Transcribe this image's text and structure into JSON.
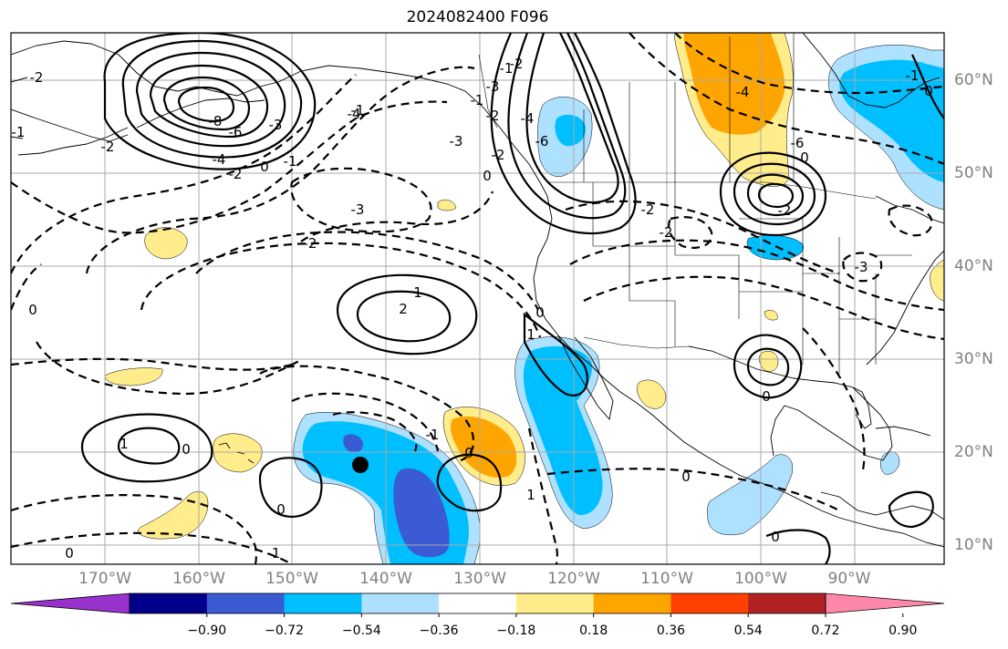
{
  "title": "2024082400 F096",
  "lon_labels": [
    "170°W",
    "160°W",
    "150°W",
    "140°W",
    "130°W",
    "120°W",
    "110°W",
    "100°W",
    "90°W"
  ],
  "lat_labels": [
    "60°N",
    "50°N",
    "40°N",
    "30°N",
    "20°N",
    "10°N"
  ],
  "colorbar": {
    "ticks": [
      "−0.90",
      "−0.72",
      "−0.54",
      "−0.36",
      "−0.18",
      "0.18",
      "0.36",
      "0.54",
      "0.72",
      "0.90"
    ],
    "colors": [
      "#9932cc",
      "#00008b",
      "#3a5bd4",
      "#00bfff",
      "#aee0ff",
      "#ffffff",
      "#ffec8b",
      "#ffa500",
      "#ff4000",
      "#b22222",
      "#ff88aa"
    ]
  },
  "contour_labels": {
    "l1": "-2",
    "l2": "-3",
    "l3": "-2",
    "l4": "-4",
    "l5": "-6",
    "l6": "-8",
    "l7": "0",
    "l8": "-1",
    "l9": "-2",
    "l10": "-3",
    "l11": "-4",
    "l12": "0",
    "l13": "-1",
    "l14": "-2",
    "l15": "-1",
    "l16": "-2",
    "l17": "-3",
    "l18": "-1",
    "l19": "-2",
    "l20": "-3",
    "l21": "-4",
    "l22": "-6",
    "l23": "-2",
    "l24": "0",
    "l25": "-2",
    "l26": "-2",
    "l27": "-3",
    "l28": "-2",
    "l29": "0",
    "l30": "-4",
    "l31": "-6",
    "l32": "1",
    "l33": "2",
    "l34": "0",
    "l35": "1",
    "l36": "1",
    "l37": "-1",
    "l38": "0",
    "l39": "0",
    "l40": "0",
    "l41": "-1",
    "l42": "1",
    "l43": "0",
    "l44": "0",
    "l45": "0",
    "l46": "-1",
    "l47": "0",
    "l48": "0",
    "l49": "-1"
  }
}
